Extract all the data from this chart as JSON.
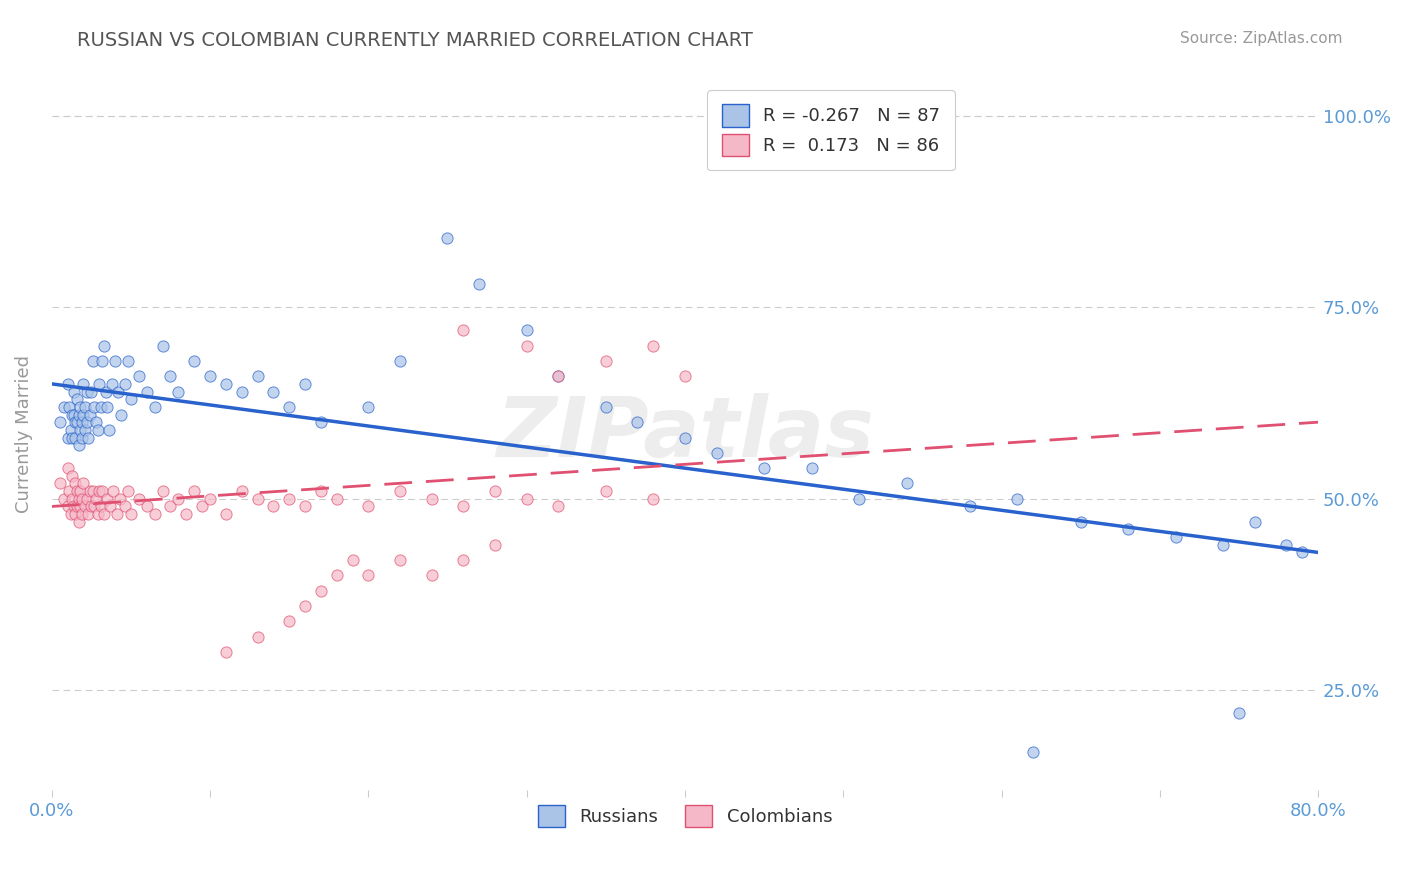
{
  "title": "RUSSIAN VS COLOMBIAN CURRENTLY MARRIED CORRELATION CHART",
  "source": "Source: ZipAtlas.com",
  "ylabel": "Currently Married",
  "xlim": [
    0.0,
    0.8
  ],
  "ylim": [
    0.12,
    1.05
  ],
  "xticks": [
    0.0,
    0.1,
    0.2,
    0.3,
    0.4,
    0.5,
    0.6,
    0.7,
    0.8
  ],
  "xticklabels": [
    "0.0%",
    "",
    "",
    "",
    "",
    "",
    "",
    "",
    "80.0%"
  ],
  "yticks_right": [
    0.25,
    0.5,
    0.75,
    1.0
  ],
  "yticklabels_right": [
    "25.0%",
    "50.0%",
    "75.0%",
    "100.0%"
  ],
  "russian_R": -0.267,
  "russian_N": 87,
  "colombian_R": 0.173,
  "colombian_N": 86,
  "russian_color": "#aac4e8",
  "colombian_color": "#f5b8c8",
  "russian_line_color": "#2962cc",
  "colombian_line_color": "#e05070",
  "title_color": "#555555",
  "source_color": "#999999",
  "axis_label_color": "#999999",
  "tick_color": "#5b9bd5",
  "grid_color": "#cccccc",
  "russians_x": [
    0.005,
    0.008,
    0.01,
    0.01,
    0.011,
    0.012,
    0.013,
    0.013,
    0.014,
    0.014,
    0.015,
    0.015,
    0.016,
    0.016,
    0.017,
    0.017,
    0.018,
    0.018,
    0.019,
    0.019,
    0.02,
    0.02,
    0.021,
    0.021,
    0.022,
    0.022,
    0.023,
    0.024,
    0.025,
    0.026,
    0.027,
    0.028,
    0.029,
    0.03,
    0.031,
    0.032,
    0.033,
    0.034,
    0.035,
    0.036,
    0.038,
    0.04,
    0.042,
    0.044,
    0.046,
    0.048,
    0.05,
    0.055,
    0.06,
    0.065,
    0.07,
    0.075,
    0.08,
    0.09,
    0.1,
    0.11,
    0.12,
    0.13,
    0.14,
    0.15,
    0.16,
    0.17,
    0.2,
    0.22,
    0.25,
    0.27,
    0.3,
    0.32,
    0.35,
    0.37,
    0.4,
    0.42,
    0.45,
    0.48,
    0.51,
    0.54,
    0.58,
    0.61,
    0.65,
    0.68,
    0.71,
    0.74,
    0.76,
    0.78,
    0.79,
    0.75,
    0.62
  ],
  "russians_y": [
    0.6,
    0.62,
    0.58,
    0.65,
    0.62,
    0.59,
    0.61,
    0.58,
    0.64,
    0.61,
    0.58,
    0.6,
    0.63,
    0.6,
    0.57,
    0.61,
    0.59,
    0.62,
    0.58,
    0.6,
    0.65,
    0.61,
    0.59,
    0.62,
    0.64,
    0.6,
    0.58,
    0.61,
    0.64,
    0.68,
    0.62,
    0.6,
    0.59,
    0.65,
    0.62,
    0.68,
    0.7,
    0.64,
    0.62,
    0.59,
    0.65,
    0.68,
    0.64,
    0.61,
    0.65,
    0.68,
    0.63,
    0.66,
    0.64,
    0.62,
    0.7,
    0.66,
    0.64,
    0.68,
    0.66,
    0.65,
    0.64,
    0.66,
    0.64,
    0.62,
    0.65,
    0.6,
    0.62,
    0.68,
    0.84,
    0.78,
    0.72,
    0.66,
    0.62,
    0.6,
    0.58,
    0.56,
    0.54,
    0.54,
    0.5,
    0.52,
    0.49,
    0.5,
    0.47,
    0.46,
    0.45,
    0.44,
    0.47,
    0.44,
    0.43,
    0.22,
    0.17
  ],
  "colombians_x": [
    0.005,
    0.008,
    0.01,
    0.01,
    0.011,
    0.012,
    0.013,
    0.013,
    0.014,
    0.015,
    0.015,
    0.016,
    0.016,
    0.017,
    0.017,
    0.018,
    0.018,
    0.019,
    0.019,
    0.02,
    0.021,
    0.022,
    0.023,
    0.024,
    0.025,
    0.026,
    0.027,
    0.028,
    0.029,
    0.03,
    0.031,
    0.032,
    0.033,
    0.035,
    0.037,
    0.039,
    0.041,
    0.043,
    0.046,
    0.048,
    0.05,
    0.055,
    0.06,
    0.065,
    0.07,
    0.075,
    0.08,
    0.085,
    0.09,
    0.095,
    0.1,
    0.11,
    0.12,
    0.13,
    0.14,
    0.15,
    0.16,
    0.17,
    0.18,
    0.2,
    0.22,
    0.24,
    0.26,
    0.28,
    0.3,
    0.32,
    0.35,
    0.38,
    0.26,
    0.3,
    0.32,
    0.35,
    0.38,
    0.4,
    0.28,
    0.26,
    0.24,
    0.22,
    0.2,
    0.19,
    0.18,
    0.17,
    0.16,
    0.15,
    0.13,
    0.11
  ],
  "colombians_y": [
    0.52,
    0.5,
    0.49,
    0.54,
    0.51,
    0.48,
    0.53,
    0.5,
    0.49,
    0.52,
    0.48,
    0.51,
    0.49,
    0.5,
    0.47,
    0.51,
    0.49,
    0.5,
    0.48,
    0.52,
    0.49,
    0.5,
    0.48,
    0.51,
    0.49,
    0.51,
    0.49,
    0.5,
    0.48,
    0.51,
    0.49,
    0.51,
    0.48,
    0.5,
    0.49,
    0.51,
    0.48,
    0.5,
    0.49,
    0.51,
    0.48,
    0.5,
    0.49,
    0.48,
    0.51,
    0.49,
    0.5,
    0.48,
    0.51,
    0.49,
    0.5,
    0.48,
    0.51,
    0.5,
    0.49,
    0.5,
    0.49,
    0.51,
    0.5,
    0.49,
    0.51,
    0.5,
    0.49,
    0.51,
    0.5,
    0.49,
    0.51,
    0.5,
    0.72,
    0.7,
    0.66,
    0.68,
    0.7,
    0.66,
    0.44,
    0.42,
    0.4,
    0.42,
    0.4,
    0.42,
    0.4,
    0.38,
    0.36,
    0.34,
    0.32,
    0.3
  ],
  "russian_trend_x": [
    0.0,
    0.8
  ],
  "russian_trend_y": [
    0.65,
    0.43
  ],
  "colombian_trend_x": [
    0.0,
    0.8
  ],
  "colombian_trend_y": [
    0.49,
    0.6
  ]
}
